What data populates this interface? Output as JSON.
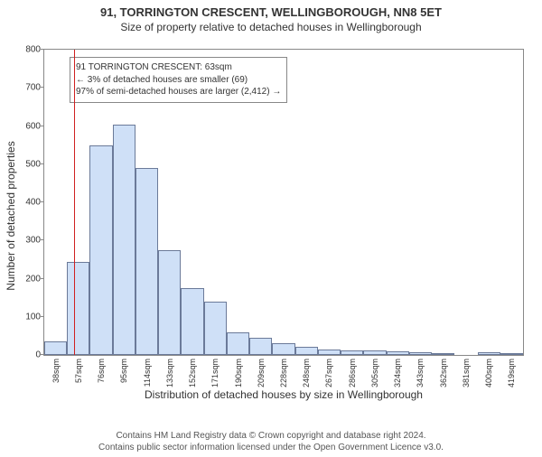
{
  "title_line1": "91, TORRINGTON CRESCENT, WELLINGBOROUGH, NN8 5ET",
  "title_line2": "Size of property relative to detached houses in Wellingborough",
  "ylabel": "Number of detached properties",
  "xlabel": "Distribution of detached houses by size in Wellingborough",
  "footer_line1": "Contains HM Land Registry data © Crown copyright and database right 2024.",
  "footer_line2": "Contains public sector information licensed under the Open Government Licence v3.0.",
  "chart": {
    "type": "histogram",
    "ylim": [
      0,
      800
    ],
    "yticks": [
      0,
      100,
      200,
      300,
      400,
      500,
      600,
      700,
      800
    ],
    "xticks": [
      "38sqm",
      "57sqm",
      "76sqm",
      "95sqm",
      "114sqm",
      "133sqm",
      "152sqm",
      "171sqm",
      "190sqm",
      "209sqm",
      "228sqm",
      "248sqm",
      "267sqm",
      "286sqm",
      "305sqm",
      "324sqm",
      "343sqm",
      "362sqm",
      "381sqm",
      "400sqm",
      "419sqm"
    ],
    "bar_count": 21,
    "values": [
      35,
      245,
      548,
      603,
      490,
      275,
      175,
      140,
      60,
      45,
      30,
      22,
      15,
      12,
      12,
      10,
      8,
      5,
      0,
      8,
      3
    ],
    "bar_fill": "#cfe0f7",
    "bar_border": "#6b7a99",
    "axis_color": "#888888",
    "background": "#ffffff",
    "reference_value_sqm": 63,
    "reference_x_min": 38,
    "reference_x_bin_width": 19,
    "reference_line_color": "#d02020"
  },
  "annotation": {
    "line1": "91 TORRINGTON CRESCENT: 63sqm",
    "line2": "← 3% of detached houses are smaller (69)",
    "line3": "97% of semi-detached houses are larger (2,412) →"
  }
}
